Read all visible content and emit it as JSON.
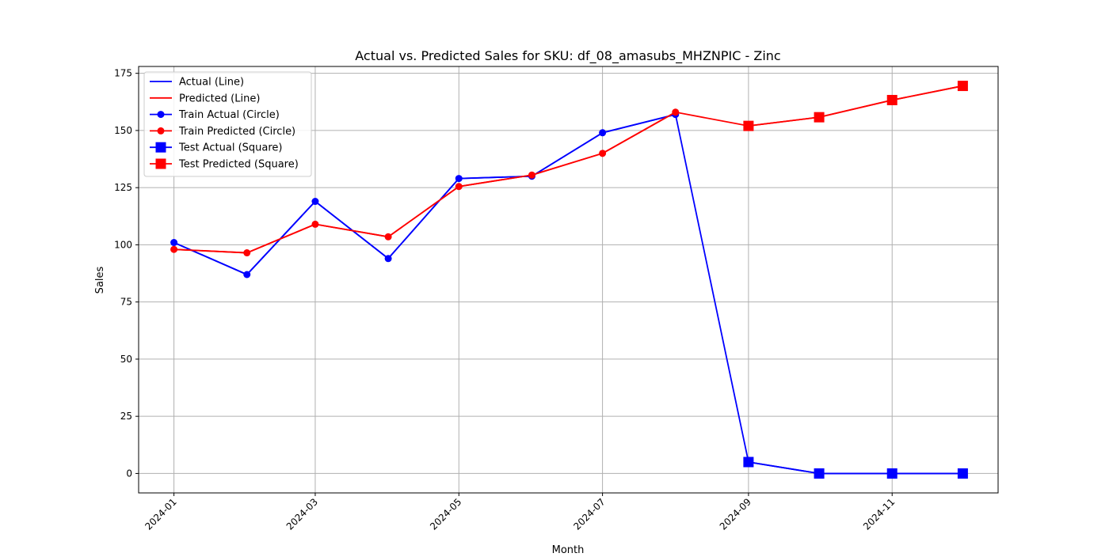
{
  "chart_data": {
    "type": "line",
    "title": "Actual vs. Predicted Sales for SKU: df_08_amasubs_MHZNPIC - Zinc",
    "xlabel": "Month",
    "ylabel": "Sales",
    "ylim": [
      -8.5,
      178
    ],
    "xlim": [
      "2023-12-17",
      "2024-12-16"
    ],
    "grid": true,
    "legend_position": "top-left",
    "x_tick_labels": [
      "2024-01",
      "2024-03",
      "2024-05",
      "2024-07",
      "2024-09",
      "2024-11"
    ],
    "y_tick_labels": [
      "0",
      "25",
      "50",
      "75",
      "100",
      "125",
      "150",
      "175"
    ],
    "y_ticks": [
      0,
      25,
      50,
      75,
      100,
      125,
      150,
      175
    ],
    "x": [
      "2024-01",
      "2024-02",
      "2024-03",
      "2024-04",
      "2024-05",
      "2024-06",
      "2024-07",
      "2024-08",
      "2024-09",
      "2024-10",
      "2024-11",
      "2024-12"
    ],
    "series": [
      {
        "name": "Actual (Line)",
        "style": "line",
        "color": "#0000ff",
        "values": [
          101,
          87,
          119,
          94,
          129,
          130,
          149,
          157,
          5,
          0,
          0,
          0
        ]
      },
      {
        "name": "Predicted (Line)",
        "style": "line",
        "color": "#ff0000",
        "values": [
          98,
          96.5,
          109,
          103.5,
          125.5,
          130.5,
          140,
          158,
          152,
          155.8,
          163.3,
          169.5
        ]
      },
      {
        "name": "Train Actual (Circle)",
        "style": "circle",
        "color": "#0000ff",
        "x": [
          "2024-01",
          "2024-02",
          "2024-03",
          "2024-04",
          "2024-05",
          "2024-06",
          "2024-07",
          "2024-08"
        ],
        "values": [
          101,
          87,
          119,
          94,
          129,
          130,
          149,
          157
        ]
      },
      {
        "name": "Train Predicted (Circle)",
        "style": "circle",
        "color": "#ff0000",
        "x": [
          "2024-01",
          "2024-02",
          "2024-03",
          "2024-04",
          "2024-05",
          "2024-06",
          "2024-07",
          "2024-08"
        ],
        "values": [
          98,
          96.5,
          109,
          103.5,
          125.5,
          130.5,
          140,
          158
        ]
      },
      {
        "name": "Test Actual (Square)",
        "style": "square",
        "color": "#0000ff",
        "x": [
          "2024-09",
          "2024-10",
          "2024-11",
          "2024-12"
        ],
        "values": [
          5,
          0,
          0,
          0
        ]
      },
      {
        "name": "Test Predicted (Square)",
        "style": "square",
        "color": "#ff0000",
        "x": [
          "2024-09",
          "2024-10",
          "2024-11",
          "2024-12"
        ],
        "values": [
          152,
          155.8,
          163.3,
          169.5
        ]
      }
    ]
  }
}
